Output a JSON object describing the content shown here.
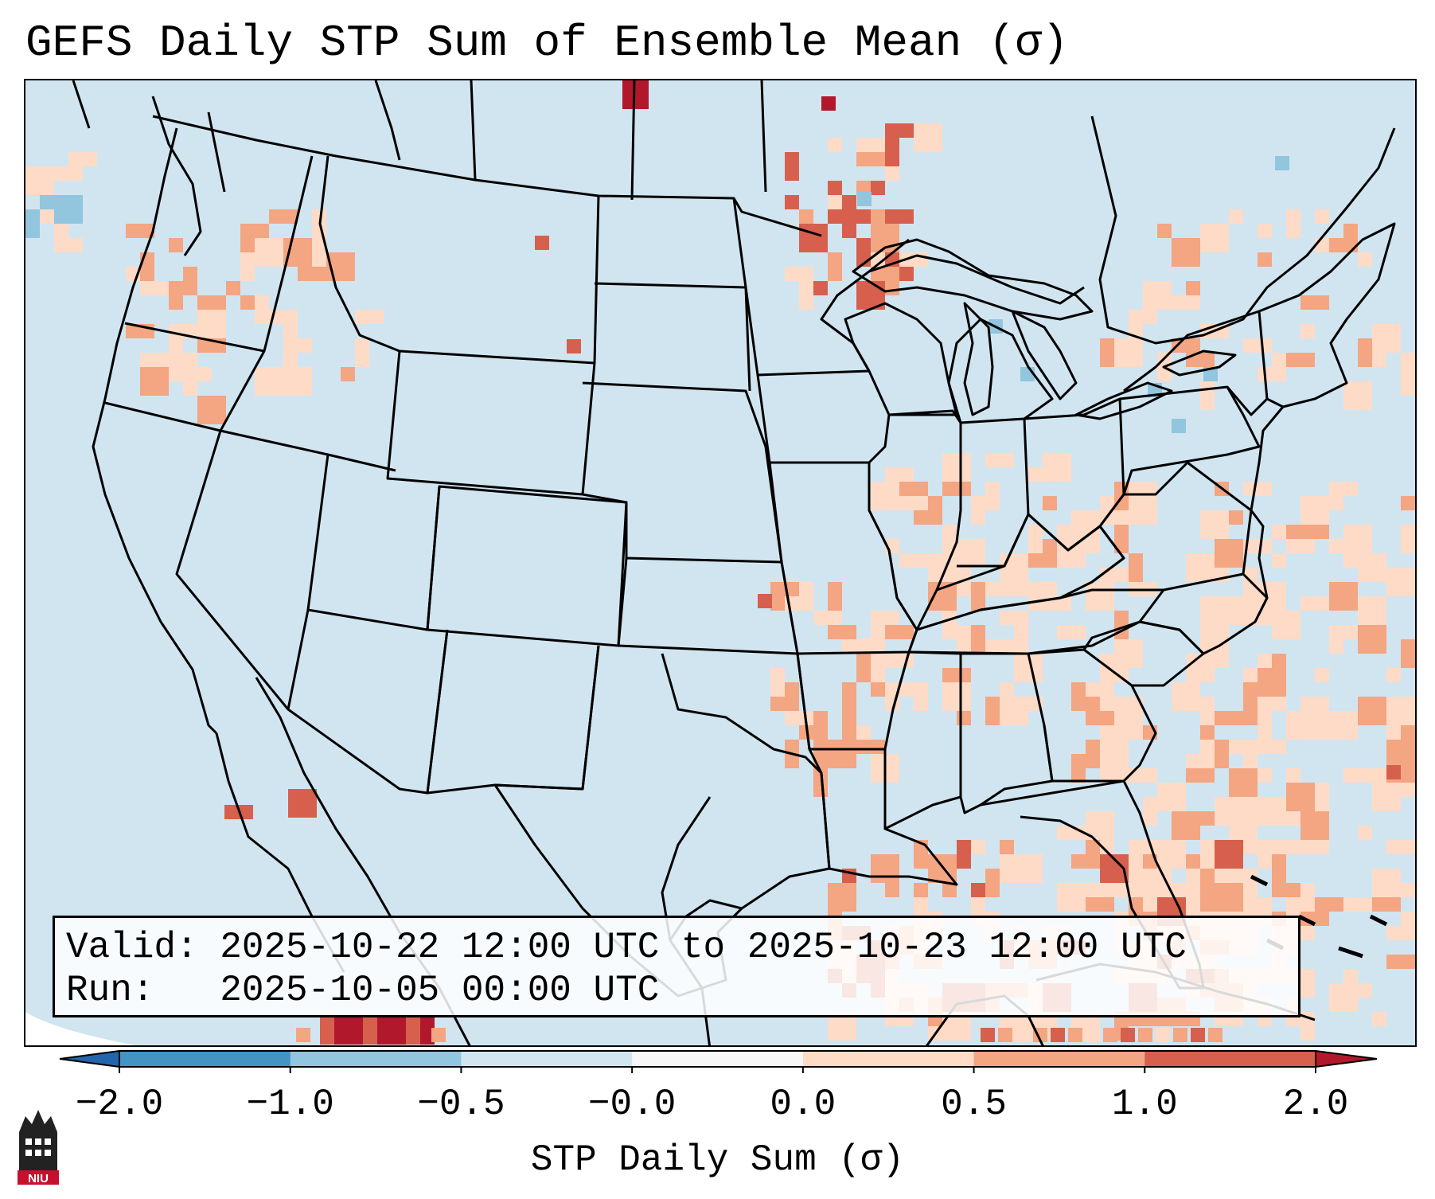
{
  "title": "GEFS Daily STP Sum of Ensemble Mean (σ)",
  "info": {
    "valid_text": "Valid: 2025-10-22 12:00 UTC to 2025-10-23 12:00 UTC",
    "run_text": "Run:   2025-10-05 00:00 UTC"
  },
  "colorbar": {
    "label": "STP Daily Sum (σ)",
    "ticks": [
      "−2.0",
      "−1.0",
      "−0.5",
      "−0.0",
      "0.0",
      "0.5",
      "1.0",
      "2.0"
    ],
    "bin_colors": [
      "#4393c3",
      "#92c5de",
      "#d1e5f0",
      "#f7f7f7",
      "#fddbc7",
      "#f4a582",
      "#d6604d"
    ],
    "extend_low_color": "#2166ac",
    "extend_high_color": "#b2182b"
  },
  "map": {
    "background_color": "#d1e5f0",
    "land_line_color": "#000000",
    "anomaly_regions": [
      {
        "name": "Gulf of Mexico / Bahamas",
        "category": "0.0 to 0.5"
      },
      {
        "name": "Western Atlantic",
        "category": "0.0 to 0.5"
      },
      {
        "name": "Ohio Valley",
        "category": "0.0 to 0.5"
      },
      {
        "name": "Northern Minnesota / Ontario",
        "category": "0.5 to 2.0"
      },
      {
        "name": "North Dakota / Manitoba border",
        "category": "above 2.0"
      },
      {
        "name": "Southern Mexico Pacific coast",
        "category": "above 2.0"
      }
    ]
  },
  "logo": {
    "text": "NIU"
  }
}
